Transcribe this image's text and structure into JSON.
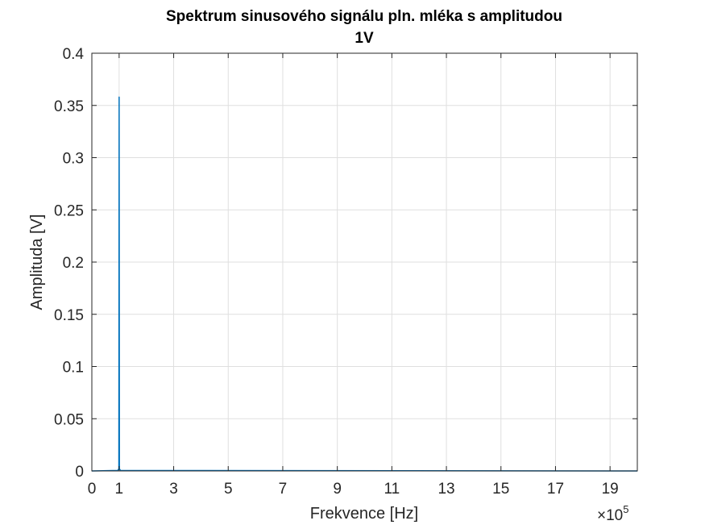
{
  "chart_data": {
    "type": "line",
    "title_line1": "Spektrum sinusového signálu pln. mléka s amplitudou",
    "title_line2": "1V",
    "xlabel": "Frekvence [Hz]",
    "ylabel": "Amplituda [V]",
    "x_multiplier_base": "×10",
    "x_multiplier_exp": "5",
    "xlim": [
      0,
      20
    ],
    "ylim": [
      0,
      0.4
    ],
    "xticks": [
      0,
      1,
      3,
      5,
      7,
      9,
      11,
      13,
      15,
      17,
      19
    ],
    "xtick_labels": [
      "0",
      "1",
      "3",
      "5",
      "7",
      "9",
      "11",
      "13",
      "15",
      "17",
      "19"
    ],
    "yticks": [
      0,
      0.05,
      0.1,
      0.15,
      0.2,
      0.25,
      0.3,
      0.35,
      0.4
    ],
    "ytick_labels": [
      "0",
      "0.05",
      "0.1",
      "0.15",
      "0.2",
      "0.25",
      "0.3",
      "0.35",
      "0.4"
    ],
    "grid": true,
    "series": [
      {
        "color": "#0072bd",
        "x": [
          0,
          0.95,
          0.99,
          1.0,
          1.01,
          1.05,
          20
        ],
        "y": [
          0,
          0.0005,
          0.002,
          0.358,
          0.002,
          0.0005,
          0
        ]
      }
    ],
    "colors": {
      "axis": "#262626",
      "grid": "#dfdfdf",
      "line": "#0072bd",
      "background": "#ffffff"
    }
  }
}
